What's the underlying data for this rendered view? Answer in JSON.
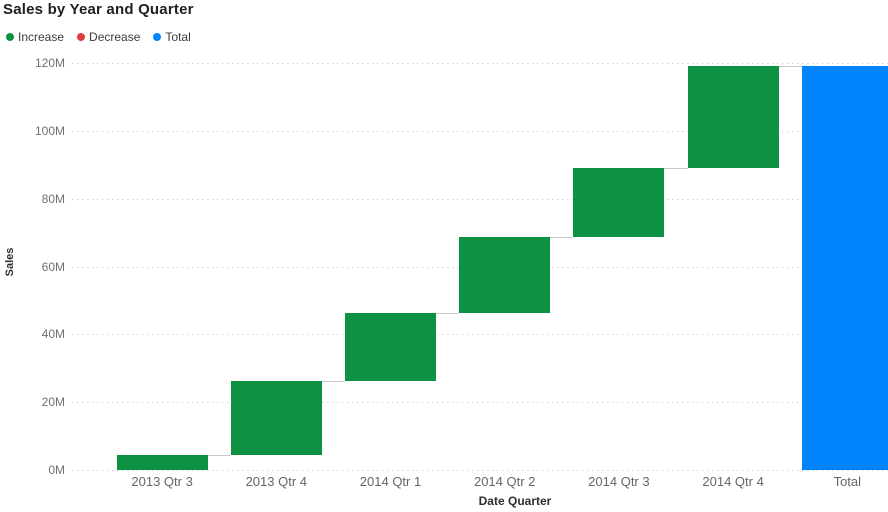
{
  "title": "Sales by Year and Quarter",
  "legend": {
    "items": [
      {
        "label": "Increase",
        "color": "#0d9143"
      },
      {
        "label": "Decrease",
        "color": "#e03b3c"
      },
      {
        "label": "Total",
        "color": "#0183fb"
      }
    ]
  },
  "chart_data": {
    "type": "bar",
    "subtype": "waterfall",
    "title": "Sales by Year and Quarter",
    "xlabel": "Date Quarter",
    "ylabel": "Sales",
    "units": "M",
    "ylim": [
      0,
      120
    ],
    "y_ticks": [
      "0M",
      "20M",
      "40M",
      "60M",
      "80M",
      "100M",
      "120M"
    ],
    "grid": "horizontal-dotted",
    "legend_position": "top-left",
    "categories": [
      "2013 Qtr 3",
      "2013 Qtr 4",
      "2014 Qtr 1",
      "2014 Qtr 2",
      "2014 Qtr 3",
      "2014 Qtr 4",
      "Total"
    ],
    "bars": [
      {
        "category": "2013 Qtr 3",
        "kind": "increase",
        "start": 0,
        "end": 4.4,
        "delta": 4.4
      },
      {
        "category": "2013 Qtr 4",
        "kind": "increase",
        "start": 4.4,
        "end": 26.2,
        "delta": 21.8
      },
      {
        "category": "2014 Qtr 1",
        "kind": "increase",
        "start": 26.2,
        "end": 46.3,
        "delta": 20.1
      },
      {
        "category": "2014 Qtr 2",
        "kind": "increase",
        "start": 46.3,
        "end": 68.7,
        "delta": 22.4
      },
      {
        "category": "2014 Qtr 3",
        "kind": "increase",
        "start": 68.7,
        "end": 89.0,
        "delta": 20.3
      },
      {
        "category": "2014 Qtr 4",
        "kind": "increase",
        "start": 89.0,
        "end": 119.1,
        "delta": 30.1
      },
      {
        "category": "Total",
        "kind": "total",
        "start": 0,
        "end": 119.1,
        "delta": 119.1
      }
    ],
    "colors": {
      "increase": "#0d9143",
      "decrease": "#e03b3c",
      "total": "#0183fb"
    }
  }
}
